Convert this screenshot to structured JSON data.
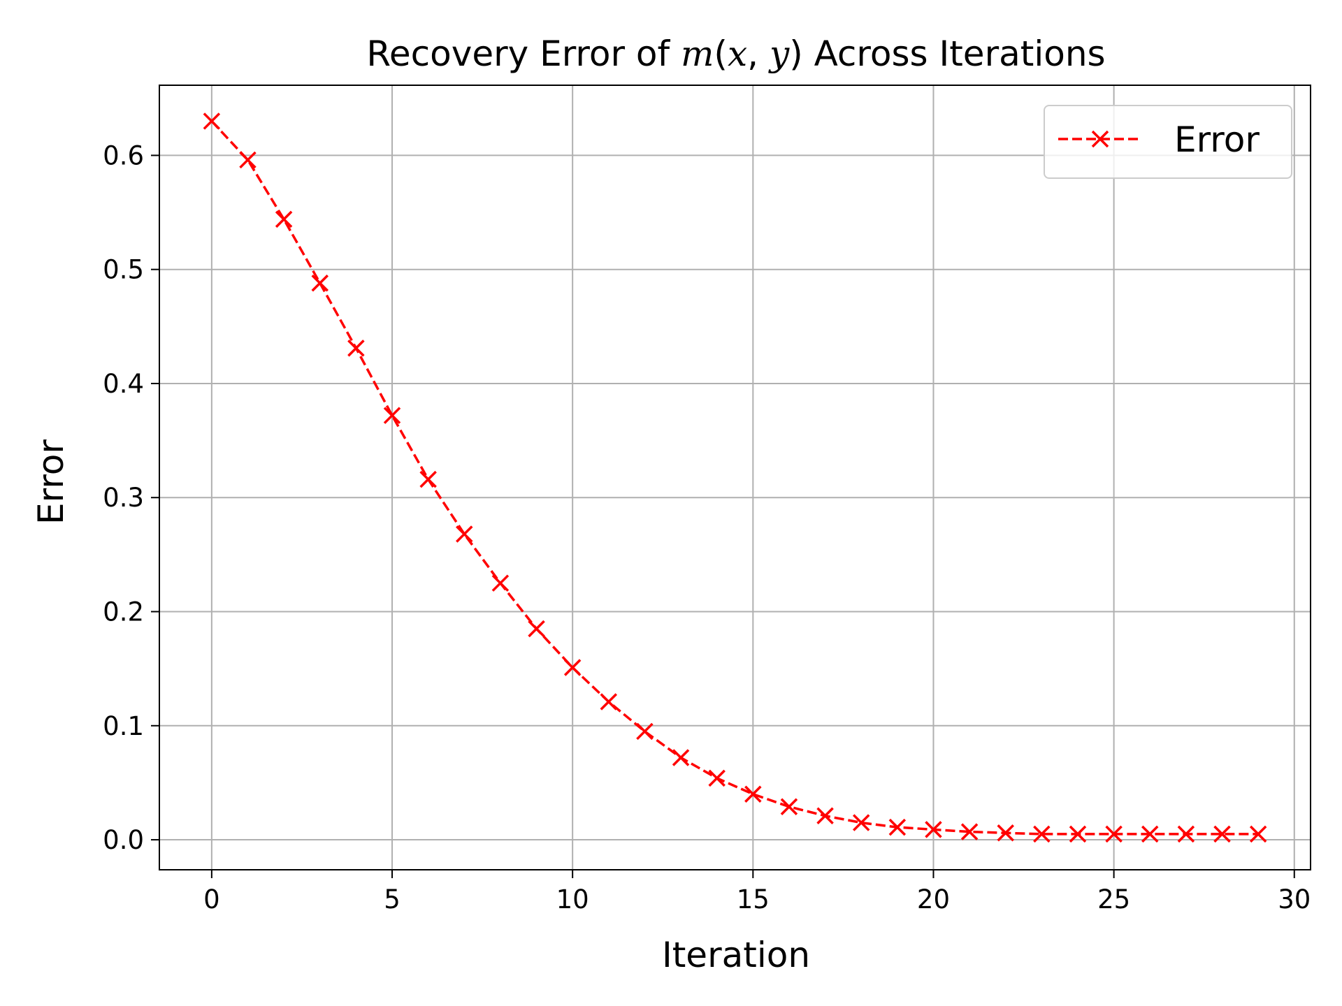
{
  "chart_data": {
    "type": "line",
    "title": {
      "prefix": "Recovery Error of ",
      "math_m": "m",
      "math_paren_open": "(",
      "math_x": "x",
      "math_comma": ", ",
      "math_y": "y",
      "math_paren_close": ")",
      "suffix": " Across Iterations"
    },
    "xlabel": "Iteration",
    "ylabel": "Error",
    "xlim": [
      -1.45,
      30.45
    ],
    "ylim": [
      -0.0263,
      0.6615
    ],
    "xticks": [
      0,
      5,
      10,
      15,
      20,
      25,
      30
    ],
    "xtick_labels": [
      "0",
      "5",
      "10",
      "15",
      "20",
      "25",
      "30"
    ],
    "yticks": [
      0.0,
      0.1,
      0.2,
      0.3,
      0.4,
      0.5,
      0.6
    ],
    "ytick_labels": [
      "0.0",
      "0.1",
      "0.2",
      "0.3",
      "0.4",
      "0.5",
      "0.6"
    ],
    "grid": true,
    "legend": {
      "position": "top-right",
      "label": "Error"
    },
    "series": [
      {
        "name": "Error",
        "color": "#ff0000",
        "line_style": "dashed",
        "marker": "x",
        "x": [
          0,
          1,
          2,
          3,
          4,
          5,
          6,
          7,
          8,
          9,
          10,
          11,
          12,
          13,
          14,
          15,
          16,
          17,
          18,
          19,
          20,
          21,
          22,
          23,
          24,
          25,
          26,
          27,
          28,
          29
        ],
        "y": [
          0.63,
          0.596,
          0.544,
          0.488,
          0.431,
          0.372,
          0.316,
          0.268,
          0.225,
          0.185,
          0.151,
          0.121,
          0.095,
          0.072,
          0.054,
          0.04,
          0.029,
          0.021,
          0.015,
          0.011,
          0.009,
          0.007,
          0.006,
          0.005,
          0.005,
          0.005,
          0.005,
          0.005,
          0.005,
          0.005
        ]
      }
    ]
  }
}
